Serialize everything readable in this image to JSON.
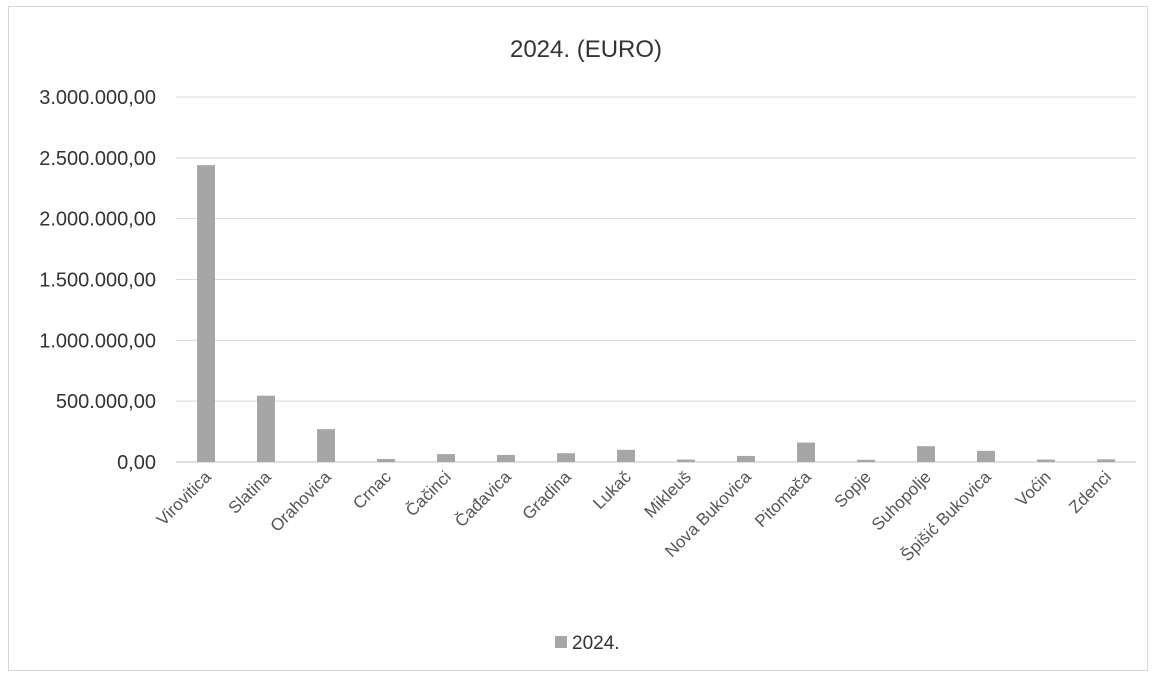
{
  "chart_data": {
    "type": "bar",
    "title": "2024. (EURO)",
    "categories": [
      "Virovitica",
      "Slatina",
      "Orahovica",
      "Crnac",
      "Čačinci",
      "Čađavica",
      "Gradina",
      "Lukač",
      "Mikleuš",
      "Nova Bukovica",
      "Pitomača",
      "Sopje",
      "Suhopolje",
      "Špišić Bukovica",
      "Voćin",
      "Zdenci"
    ],
    "series": [
      {
        "name": "2024.",
        "values": [
          2440000,
          545000,
          270000,
          25000,
          65000,
          58000,
          72000,
          100000,
          20000,
          50000,
          160000,
          18000,
          130000,
          92000,
          20000,
          22000
        ]
      }
    ],
    "ylim": [
      0,
      3000000
    ],
    "yticks": [
      "0,00",
      "500.000,00",
      "1.000.000,00",
      "1.500.000,00",
      "2.000.000,00",
      "2.500.000,00",
      "3.000.000,00"
    ],
    "xlabel": "",
    "ylabel": "",
    "grid": true,
    "legend": "bottom",
    "colors": {
      "bar": "#a6a6a6",
      "grid": "#d9d9d9",
      "text": "#333333"
    }
  }
}
